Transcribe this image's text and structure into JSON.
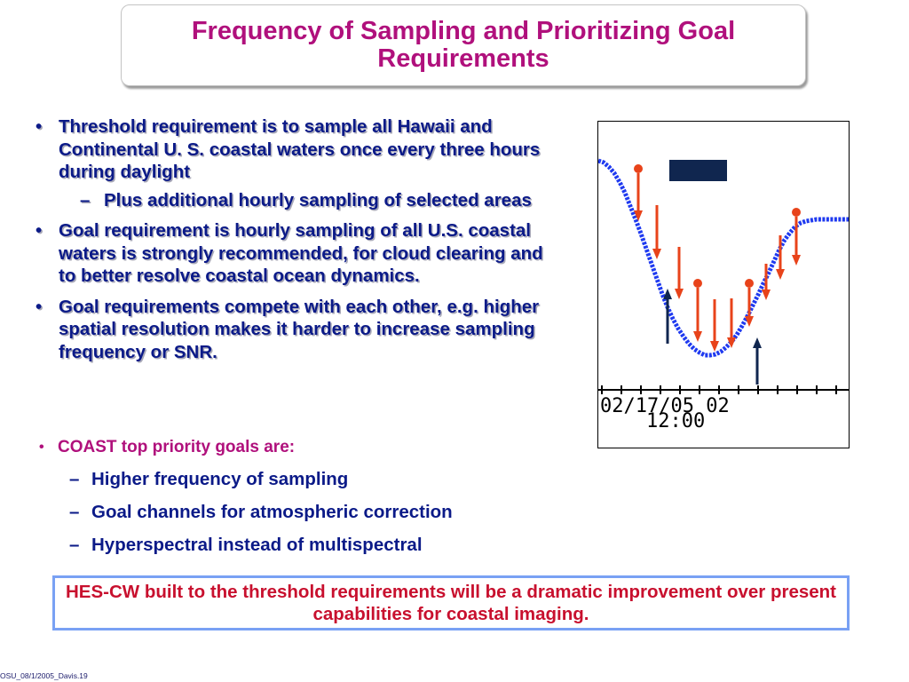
{
  "slide": {
    "title": "Frequency of Sampling and Prioritizing Goal Requirements",
    "bullet_marker": "•",
    "sub_marker": "–",
    "bullets": [
      {
        "text": "Threshold requirement is to sample all Hawaii and Continental U. S. coastal waters once every three hours during daylight",
        "sub": "Plus additional hourly sampling of selected areas"
      },
      {
        "text": "Goal requirement is hourly sampling of all U.S. coastal waters is strongly recommended, for cloud clearing and to better resolve coastal ocean dynamics."
      },
      {
        "text": "Goal requirements compete with each other, e.g. higher spatial resolution makes it harder to increase sampling frequency or SNR."
      }
    ],
    "goals": {
      "heading": "COAST top priority goals are:",
      "items": [
        "Higher frequency of sampling",
        "Goal channels for atmospheric correction",
        "Hyperspectral instead of multispectral"
      ]
    },
    "callout": "HES-CW built to the threshold requirements will be a dramatic improvement over present capabilities for coastal imaging.",
    "footer": "OSU_08/1/2005_Davis.19"
  },
  "figure": {
    "tick_label_line1": "02/17/05 02",
    "tick_label_line2": "12:00"
  },
  "colors": {
    "title": "#b0107c",
    "body": "#0b1a88",
    "callout": "#c8102e",
    "callout_border": "#79a1f4",
    "curve": "#1f3af0",
    "red_arrow": "#e8431a",
    "navy_arrow": "#10264f"
  }
}
